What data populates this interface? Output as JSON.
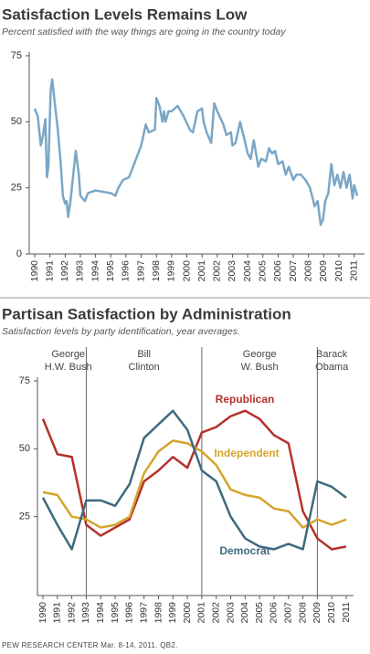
{
  "chart_data": [
    {
      "type": "line",
      "title": "Satisfaction Levels Remains Low",
      "subtitle": "Percent satisfied with the way things are going in the country today",
      "color": "#7ba7c6",
      "x": [
        1990.0,
        1990.2,
        1990.4,
        1990.55,
        1990.7,
        1990.8,
        1990.9,
        1991.05,
        1991.15,
        1991.3,
        1991.5,
        1991.7,
        1991.85,
        1992.0,
        1992.1,
        1992.2,
        1992.35,
        1992.7,
        1992.9,
        1993.0,
        1993.3,
        1993.5,
        1994.0,
        1995.0,
        1995.3,
        1995.5,
        1995.8,
        1996.2,
        1996.6,
        1997.0,
        1997.3,
        1997.5,
        1997.9,
        1998.0,
        1998.2,
        1998.4,
        1998.5,
        1998.6,
        1998.8,
        1999.0,
        1999.4,
        1999.8,
        2000.2,
        2000.4,
        2000.7,
        2001.0,
        2001.1,
        2001.3,
        2001.6,
        2001.8,
        2002.0,
        2002.4,
        2002.6,
        2002.9,
        2003.0,
        2003.2,
        2003.5,
        2003.8,
        2004.0,
        2004.2,
        2004.4,
        2004.7,
        2004.9,
        2005.2,
        2005.4,
        2005.6,
        2005.8,
        2006.0,
        2006.3,
        2006.5,
        2006.7,
        2007.0,
        2007.2,
        2007.5,
        2007.8,
        2008.1,
        2008.4,
        2008.6,
        2008.8,
        2008.95,
        2009.1,
        2009.3,
        2009.5,
        2009.7,
        2009.9,
        2010.1,
        2010.3,
        2010.5,
        2010.7,
        2010.9,
        2011.0,
        2011.2
      ],
      "values": [
        55,
        52,
        41,
        45,
        51,
        29,
        33,
        62,
        66,
        58,
        48,
        35,
        22,
        19,
        20,
        14,
        20,
        39,
        30,
        22,
        20,
        23,
        24,
        23,
        22,
        25,
        28,
        29,
        35,
        41,
        49,
        46,
        47,
        59,
        56,
        50,
        54,
        50,
        54,
        54,
        56,
        52,
        47,
        46,
        54,
        55,
        50,
        46,
        42,
        57,
        54,
        49,
        45,
        46,
        41,
        42,
        50,
        43,
        38,
        36,
        43,
        33,
        36,
        35,
        40,
        38,
        39,
        34,
        35,
        30,
        33,
        28,
        30,
        30,
        28,
        25,
        18,
        20,
        11,
        13,
        20,
        23,
        34,
        26,
        30,
        25,
        31,
        25,
        30,
        21,
        26,
        22
      ],
      "xlim": [
        1990,
        2011.2
      ],
      "xticks": [
        1990,
        1991,
        1992,
        1993,
        1994,
        1995,
        1996,
        1997,
        1998,
        1999,
        2000,
        2001,
        2002,
        2003,
        2004,
        2005,
        2006,
        2007,
        2008,
        2009,
        2010,
        2011
      ],
      "ylim": [
        0,
        75
      ],
      "yticks": [
        0,
        25,
        50,
        75
      ]
    },
    {
      "type": "line",
      "title": "Partisan Satisfaction by Administration",
      "subtitle": "Satisfaction levels by party identification, year averages.",
      "x": [
        1990,
        1991,
        1992,
        1993,
        1994,
        1995,
        1996,
        1997,
        1998,
        1999,
        2000,
        2001,
        2002,
        2003,
        2004,
        2005,
        2006,
        2007,
        2008,
        2009,
        2010,
        2011
      ],
      "series": [
        {
          "name": "Republican",
          "color": "#b5312c",
          "values": [
            61,
            48,
            47,
            22,
            18,
            21,
            24,
            38,
            42,
            47,
            43,
            56,
            58,
            62,
            64,
            61,
            55,
            52,
            27,
            17,
            13,
            14
          ]
        },
        {
          "name": "Independent",
          "color": "#d6a42c",
          "values": [
            34,
            33,
            25,
            24,
            21,
            22,
            25,
            41,
            49,
            53,
            52,
            49,
            44,
            35,
            33,
            32,
            28,
            27,
            21,
            24,
            22,
            24
          ]
        },
        {
          "name": "Democrat",
          "color": "#3e6a80",
          "values": [
            32,
            22,
            13,
            31,
            31,
            29,
            37,
            54,
            59,
            64,
            57,
            42,
            38,
            25,
            17,
            14,
            13,
            15,
            13,
            38,
            36,
            32
          ]
        }
      ],
      "dividers": [
        1993,
        2001,
        2009
      ],
      "administrations": [
        {
          "label": [
            "George",
            "H.W. Bush"
          ]
        },
        {
          "label": [
            "Bill",
            "Clinton"
          ]
        },
        {
          "label": [
            "George",
            "W. Bush"
          ]
        },
        {
          "label": [
            "Barack",
            "Obama"
          ]
        }
      ],
      "xlim": [
        1990,
        2011
      ],
      "xticks": [
        1990,
        1991,
        1992,
        1993,
        1994,
        1995,
        1996,
        1997,
        1998,
        1999,
        2000,
        2001,
        2002,
        2003,
        2004,
        2005,
        2006,
        2007,
        2008,
        2009,
        2010,
        2011
      ],
      "ylim": [
        0,
        75
      ],
      "yticks": [
        25,
        50,
        75
      ]
    }
  ],
  "source": "PEW RESEARCH CENTER Mar. 8-14, 2011. QB2."
}
